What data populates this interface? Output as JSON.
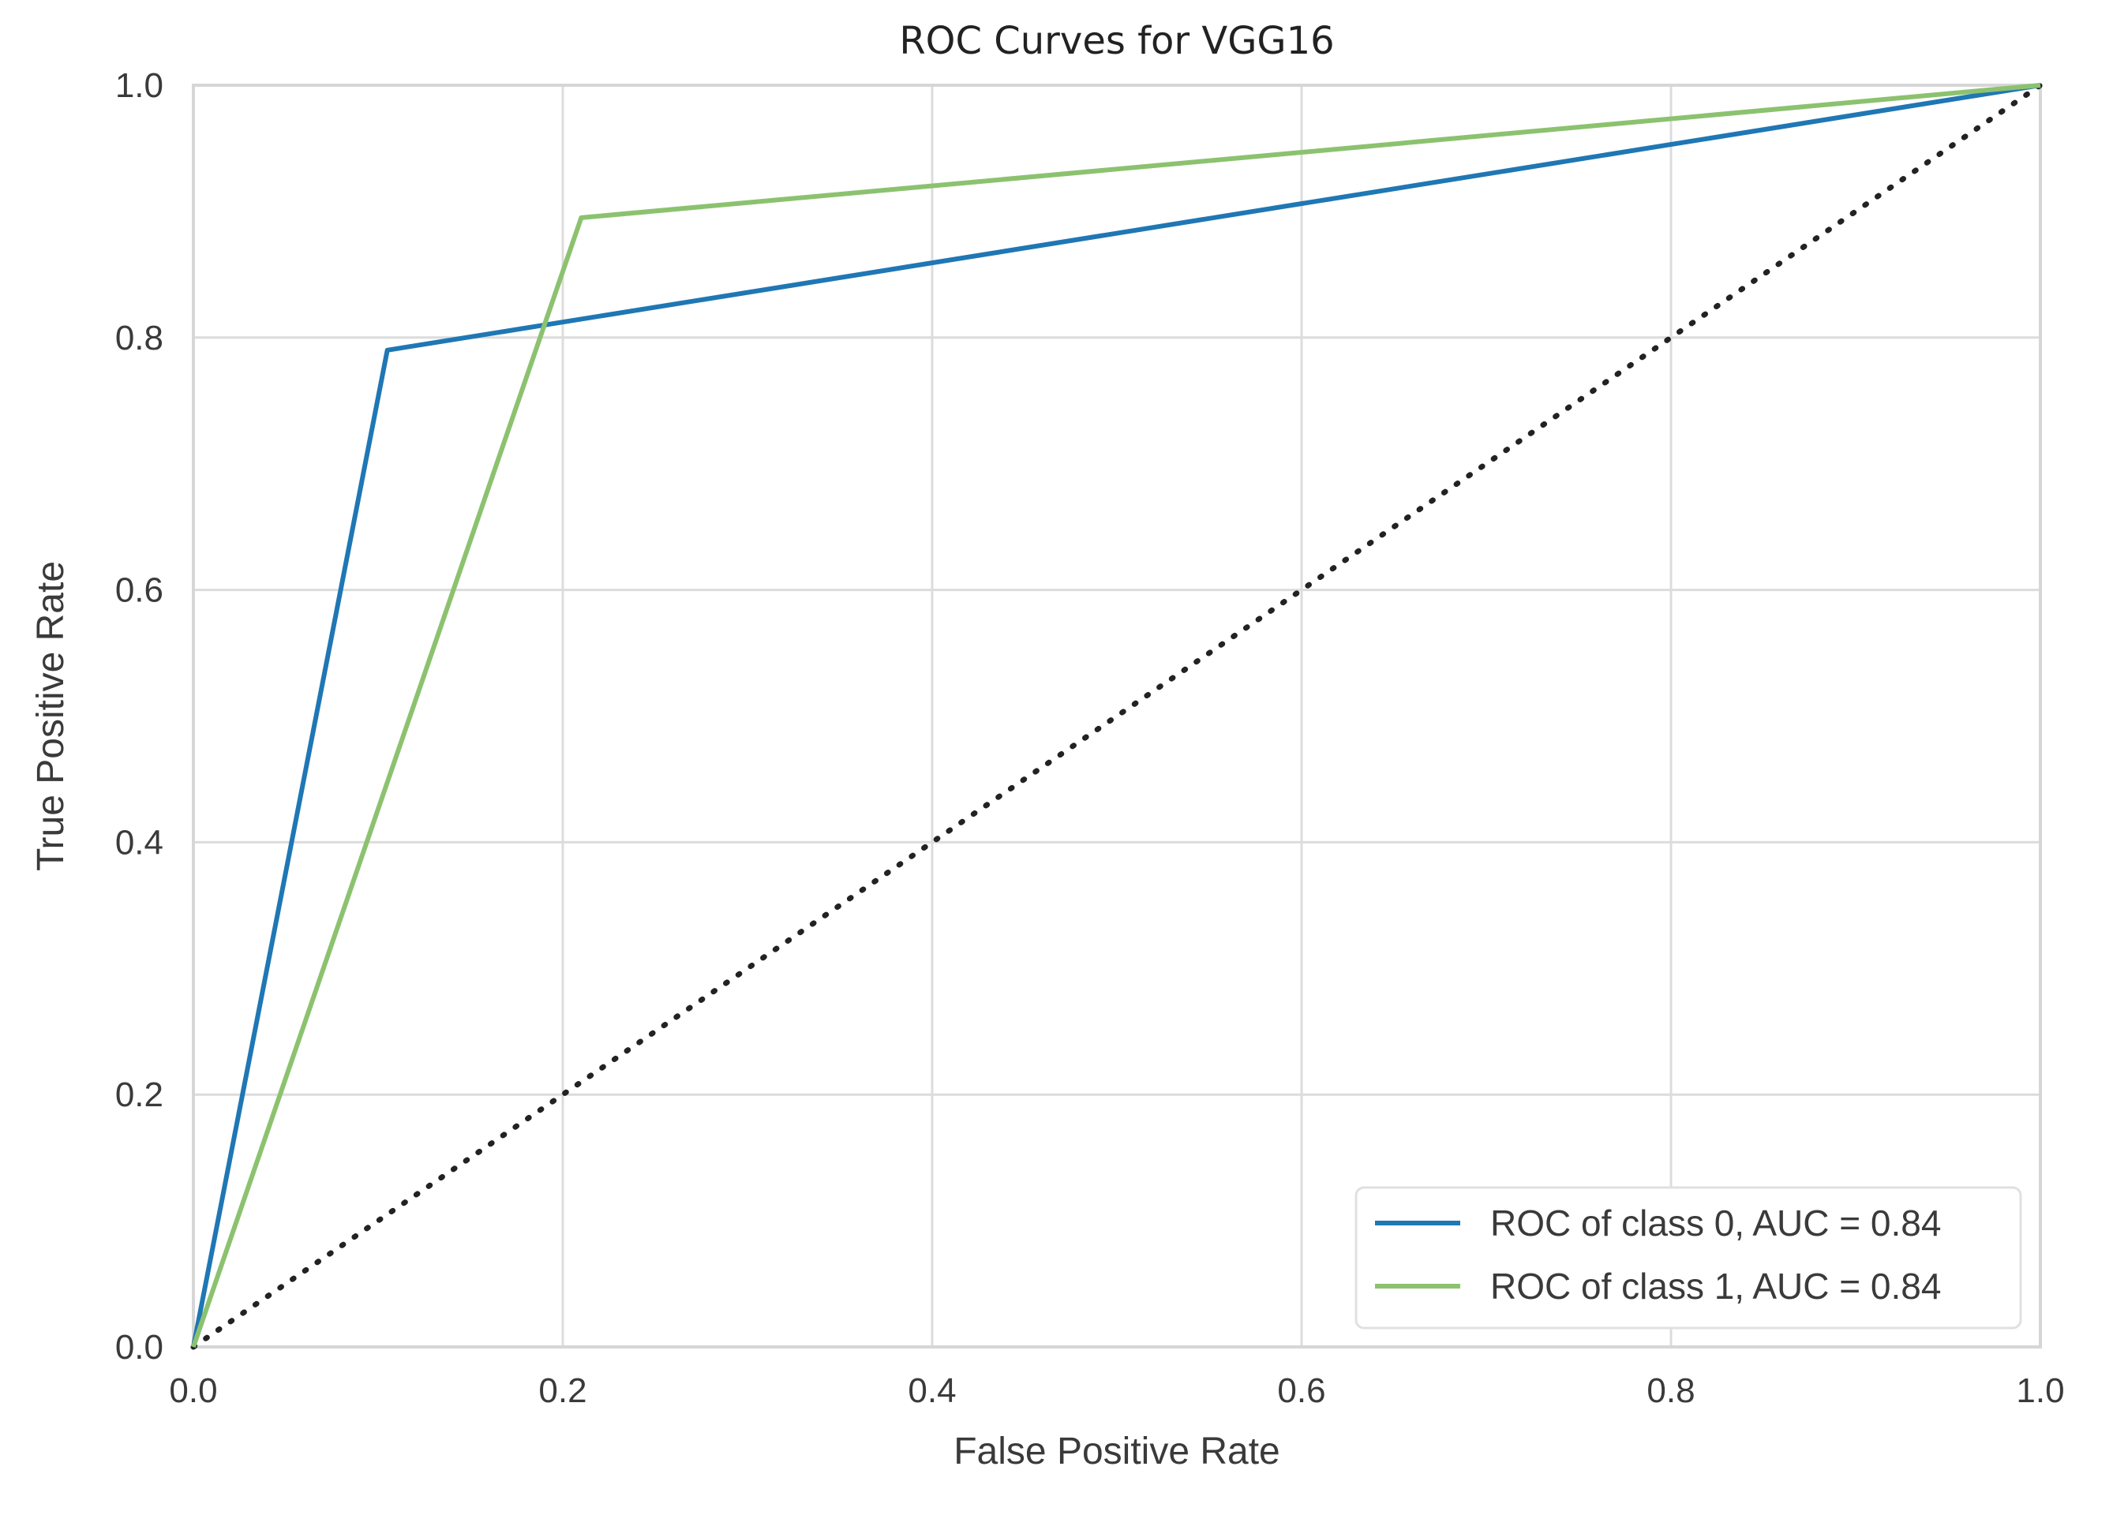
{
  "chart_data": {
    "type": "line",
    "title": "ROC Curves for VGG16",
    "xlabel": "False Positive Rate",
    "ylabel": "True Positive Rate",
    "xlim": [
      0.0,
      1.0
    ],
    "ylim": [
      0.0,
      1.0
    ],
    "grid": true,
    "xticks": [
      0.0,
      0.2,
      0.4,
      0.6,
      0.8,
      1.0
    ],
    "yticks": [
      0.0,
      0.2,
      0.4,
      0.6,
      0.8,
      1.0
    ],
    "xtick_labels": [
      "0.0",
      "0.2",
      "0.4",
      "0.6",
      "0.8",
      "1.0"
    ],
    "ytick_labels": [
      "0.0",
      "0.2",
      "0.4",
      "0.6",
      "0.8",
      "1.0"
    ],
    "legend_position": "bottom-right",
    "series": [
      {
        "name": "ROC of class 0, AUC = 0.84",
        "color": "#1f77b4",
        "style": "solid",
        "x": [
          0.0,
          0.105,
          1.0
        ],
        "y": [
          0.0,
          0.79,
          1.0
        ]
      },
      {
        "name": "ROC of class 1, AUC = 0.84",
        "color": "#8cc26f",
        "style": "solid",
        "x": [
          0.0,
          0.21,
          1.0
        ],
        "y": [
          0.0,
          0.895,
          1.0
        ]
      }
    ],
    "reference_line": {
      "name": "chance",
      "color": "#222222",
      "style": "dotted",
      "x": [
        0.0,
        1.0
      ],
      "y": [
        0.0,
        1.0
      ]
    }
  }
}
